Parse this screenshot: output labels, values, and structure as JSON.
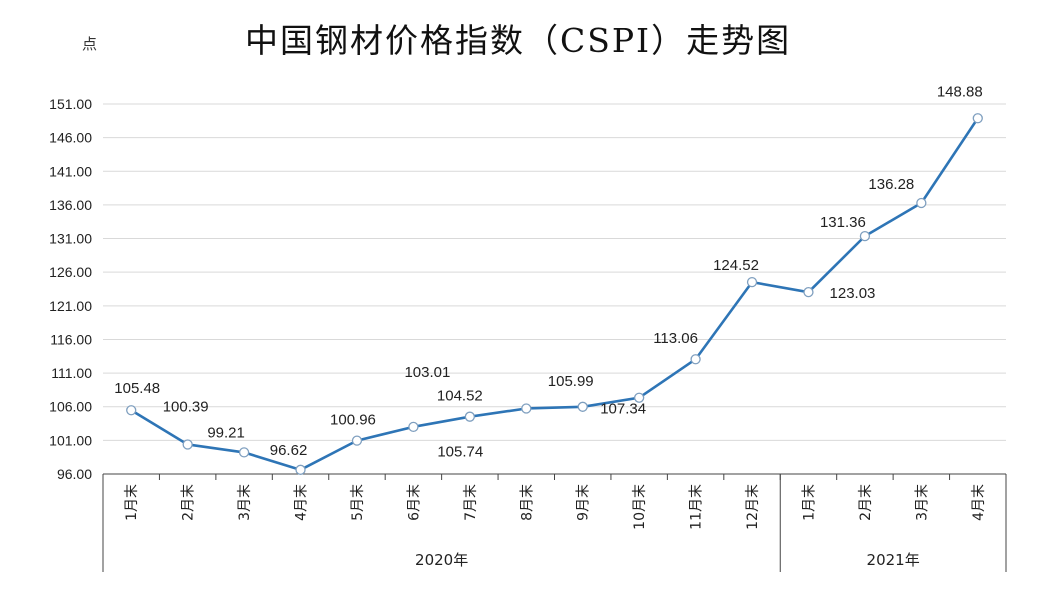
{
  "chart_data": {
    "type": "line",
    "title": "中国钢材价格指数（CSPI）走势图",
    "ylabel": "点",
    "ylim": [
      96.0,
      151.0
    ],
    "yticks": [
      "96.00",
      "101.00",
      "106.00",
      "111.00",
      "116.00",
      "121.00",
      "126.00",
      "131.00",
      "136.00",
      "141.00",
      "146.00",
      "151.00"
    ],
    "categories": [
      "1月末",
      "2月末",
      "3月末",
      "4月末",
      "5月末",
      "6月末",
      "7月末",
      "8月末",
      "9月末",
      "10月末",
      "11月末",
      "12月末",
      "1月末",
      "2月末",
      "3月末",
      "4月末"
    ],
    "year_groups": [
      {
        "label": "2020年",
        "count": 12
      },
      {
        "label": "2021年",
        "count": 4
      }
    ],
    "values": [
      105.48,
      100.39,
      99.21,
      96.62,
      100.96,
      103.01,
      104.52,
      105.74,
      105.99,
      107.34,
      113.06,
      124.52,
      123.03,
      131.36,
      136.28,
      148.88
    ],
    "data_labels": [
      "105.48",
      "100.39",
      "99.21",
      "96.62",
      "100.96",
      "103.01",
      "104.52",
      "105.74",
      "105.99",
      "107.34",
      "113.06",
      "124.52",
      "123.03",
      "131.36",
      "136.28",
      "148.88"
    ],
    "grid": true,
    "colors": {
      "line": "#2e75b6",
      "marker_fill": "#ffffff",
      "grid": "#d9d9d9",
      "axis": "#444444"
    }
  }
}
